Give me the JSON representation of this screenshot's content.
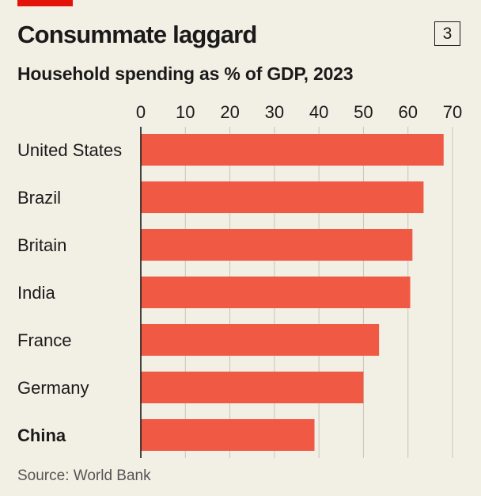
{
  "header": {
    "title": "Consummate laggard",
    "chart_number": "3",
    "subtitle": "Household spending as % of GDP, 2023"
  },
  "source": "Source: World Bank",
  "colors": {
    "bar": "#f05a44",
    "accent": "#e3120b",
    "grid": "#c9c4b8",
    "background": "#f2efe4"
  },
  "chart_data": {
    "type": "bar",
    "orientation": "horizontal",
    "title": "Consummate laggard",
    "subtitle": "Household spending as % of GDP, 2023",
    "xlabel": "",
    "ylabel": "",
    "xlim": [
      0,
      70
    ],
    "x_ticks": [
      0,
      10,
      20,
      30,
      40,
      50,
      60,
      70
    ],
    "x_axis_position": "top",
    "grid": true,
    "highlighted_category": "China",
    "categories": [
      "United States",
      "Brazil",
      "Britain",
      "India",
      "France",
      "Germany",
      "China"
    ],
    "values": [
      68,
      63.5,
      61,
      60.5,
      53.5,
      50,
      39
    ]
  }
}
